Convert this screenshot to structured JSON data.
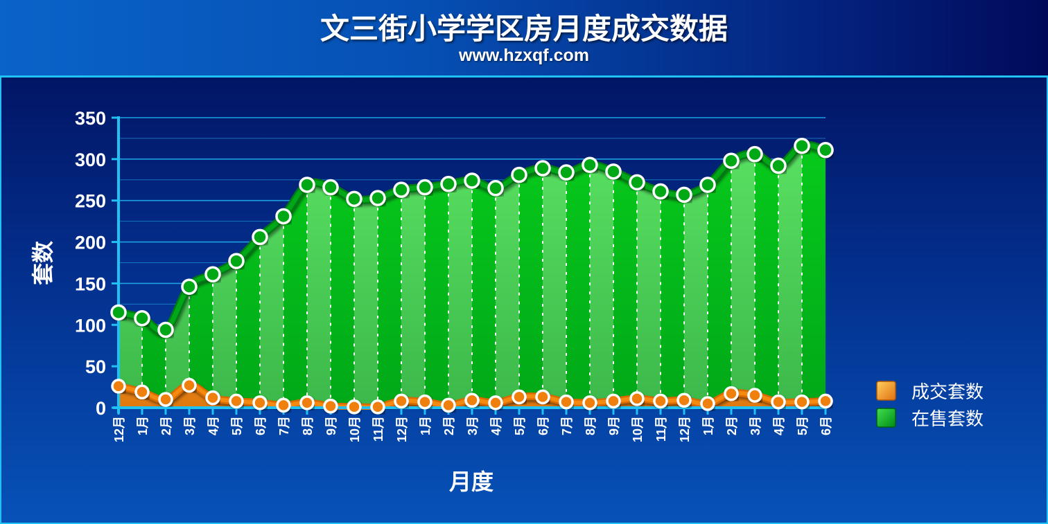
{
  "header": {
    "title": "文三街小学学区房月度成交数据",
    "subtitle": "www.hzxqf.com"
  },
  "colors": {
    "background_dark": "#00105e",
    "panel_border": "#1fc2f3",
    "grid": "#1fa8e8",
    "sale_series": "#00c21a",
    "sale_series_light": "#55e060",
    "deal_series": "#f08c14",
    "deal_series_light": "#ffb040",
    "marker_stroke": "#ffffff"
  },
  "chart_data": {
    "type": "area",
    "xlabel": "月度",
    "ylabel": "套数",
    "ylim": [
      0,
      350
    ],
    "yticks": [
      0,
      50,
      100,
      150,
      200,
      250,
      300,
      350
    ],
    "grid": true,
    "legend_position": "right",
    "categories": [
      "12月",
      "1月",
      "2月",
      "3月",
      "4月",
      "5月",
      "6月",
      "7月",
      "8月",
      "9月",
      "10月",
      "11月",
      "12月",
      "1月",
      "2月",
      "3月",
      "4月",
      "5月",
      "6月",
      "7月",
      "8月",
      "9月",
      "10月",
      "11月",
      "12月",
      "1月",
      "2月",
      "3月",
      "4月",
      "5月",
      "6月"
    ],
    "series": [
      {
        "name": "成交套数",
        "color": "#f08c14",
        "values": [
          26,
          19,
          10,
          27,
          12,
          8,
          6,
          3,
          6,
          2,
          1,
          1,
          8,
          7,
          3,
          9,
          6,
          13,
          13,
          7,
          6,
          8,
          11,
          8,
          9,
          5,
          17,
          15,
          7,
          7,
          8
        ]
      },
      {
        "name": "在售套数",
        "color": "#00c21a",
        "values": [
          115,
          108,
          94,
          146,
          161,
          177,
          206,
          231,
          269,
          266,
          252,
          253,
          263,
          266,
          270,
          274,
          265,
          281,
          289,
          284,
          293,
          285,
          272,
          261,
          257,
          269,
          298,
          306,
          292,
          316,
          311
        ]
      }
    ]
  }
}
